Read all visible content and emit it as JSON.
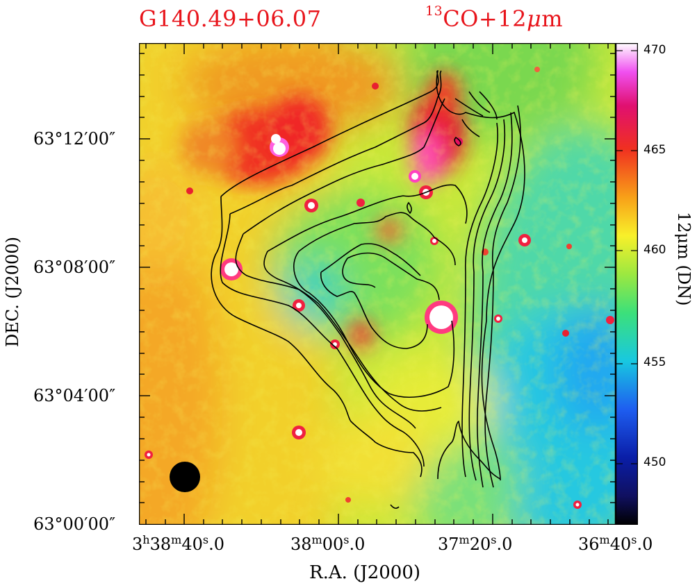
{
  "figure": {
    "source_name": "G140.49+06.07",
    "tracer": {
      "isotope": "13",
      "rest": "CO+12",
      "mu": "μ",
      "unit": "m"
    }
  },
  "axes": {
    "x_label": "R.A.  (J2000)",
    "y_label": "DEC.  (J2000)",
    "x_ticks": [
      {
        "h": "3",
        "hu": "h",
        "m": "38",
        "mu": "m",
        "s": "40",
        "su": "s",
        "frac": ".0"
      },
      {
        "m": "38",
        "mu": "m",
        "s": "00",
        "su": "s",
        "frac": ".0"
      },
      {
        "m": "37",
        "mu": "m",
        "s": "20",
        "su": "s",
        "frac": ".0"
      },
      {
        "m": "36",
        "mu": "m",
        "s": "40",
        "su": "s",
        "frac": ".0"
      }
    ],
    "y_ticks": [
      "63°12′00″",
      "63°08′00″",
      "63°04′00″",
      "63°00′00″"
    ]
  },
  "colorbar": {
    "label": "12μm  (DN)",
    "ticks": [
      "470",
      "465",
      "460",
      "455",
      "450"
    ],
    "range": [
      447,
      471
    ],
    "colors": [
      "#000000",
      "#0a1ea8",
      "#1e5ef0",
      "#18c8e0",
      "#3ce07a",
      "#b4ec3c",
      "#f8f02a",
      "#f8a018",
      "#f03020",
      "#e01070",
      "#f050f0",
      "#ffffff"
    ]
  },
  "beam": {
    "shape": "circle",
    "color": "#000000"
  }
}
